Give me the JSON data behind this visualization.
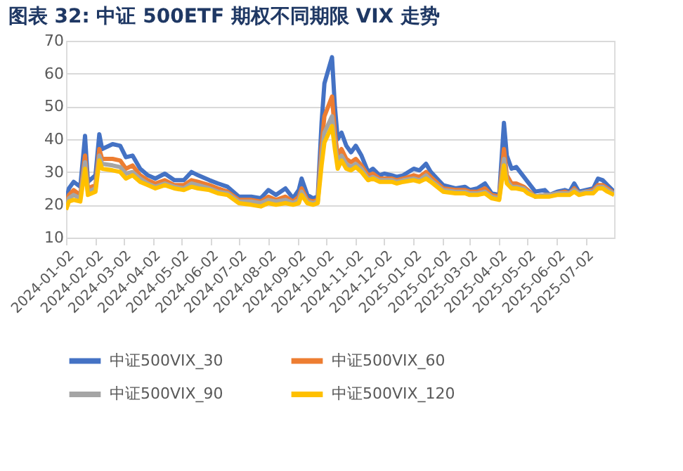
{
  "chart_data": {
    "type": "line",
    "title": "图表 32:  中证 500ETF 期权不同期限 VIX 走势",
    "x": [
      "2024-01-02",
      "2024-01-05",
      "2024-01-10",
      "2024-01-17",
      "2024-01-22",
      "2024-01-25",
      "2024-02-02",
      "2024-02-06",
      "2024-02-09",
      "2024-02-20",
      "2024-02-28",
      "2024-03-05",
      "2024-03-12",
      "2024-03-20",
      "2024-03-28",
      "2024-04-05",
      "2024-04-15",
      "2024-04-25",
      "2024-05-05",
      "2024-05-13",
      "2024-05-20",
      "2024-06-01",
      "2024-06-10",
      "2024-06-20",
      "2024-07-02",
      "2024-07-15",
      "2024-07-25",
      "2024-08-02",
      "2024-08-10",
      "2024-08-20",
      "2024-08-28",
      "2024-09-03",
      "2024-09-06",
      "2024-09-12",
      "2024-09-18",
      "2024-09-23",
      "2024-09-27",
      "2024-09-30",
      "2024-10-08",
      "2024-10-11",
      "2024-10-14",
      "2024-10-18",
      "2024-10-23",
      "2024-10-28",
      "2024-11-02",
      "2024-11-08",
      "2024-11-15",
      "2024-11-20",
      "2024-11-27",
      "2024-12-02",
      "2024-12-10",
      "2024-12-15",
      "2024-12-22",
      "2025-01-02",
      "2025-01-08",
      "2025-01-15",
      "2025-01-20",
      "2025-02-02",
      "2025-02-15",
      "2025-02-25",
      "2025-03-02",
      "2025-03-10",
      "2025-03-18",
      "2025-03-25",
      "2025-04-02",
      "2025-04-07",
      "2025-04-10",
      "2025-04-15",
      "2025-04-20",
      "2025-04-28",
      "2025-05-02",
      "2025-05-10",
      "2025-05-20",
      "2025-05-25",
      "2025-06-02",
      "2025-06-10",
      "2025-06-15",
      "2025-06-20",
      "2025-06-25",
      "2025-07-02",
      "2025-07-10",
      "2025-07-15",
      "2025-07-20",
      "2025-07-25",
      "2025-08-01"
    ],
    "series": [
      {
        "name": "中证500VIX_30",
        "color": "#4472c4",
        "values": [
          21,
          25,
          27,
          25.5,
          41,
          27,
          29,
          41.5,
          37,
          38.5,
          38,
          34.5,
          35,
          31,
          29,
          28,
          29.5,
          27.5,
          27.5,
          30,
          29,
          27.5,
          26.5,
          25.5,
          22.5,
          22.5,
          22,
          24.5,
          23,
          25,
          22,
          24.5,
          28,
          23,
          22,
          22.5,
          45,
          57,
          65,
          50,
          40,
          42,
          38,
          36,
          38,
          35,
          30,
          31,
          29,
          29.5,
          29,
          28.5,
          29,
          31,
          30.5,
          32.5,
          30,
          26,
          25,
          25.5,
          24.5,
          25,
          26.5,
          23.5,
          23,
          45,
          35,
          31,
          31.5,
          28.5,
          27,
          24,
          24.5,
          23,
          24,
          24.5,
          24,
          26.5,
          24,
          24.5,
          25,
          28,
          27.5,
          26,
          24
        ]
      },
      {
        "name": "中证500VIX_60",
        "color": "#ed7d31",
        "values": [
          20,
          23,
          24.5,
          23,
          35,
          25,
          26,
          37,
          34,
          34,
          33.5,
          31,
          32,
          29,
          27.5,
          26.5,
          27.5,
          26,
          26,
          27.5,
          27,
          26,
          25,
          24,
          21.5,
          21.5,
          21,
          22.5,
          21.5,
          22.5,
          21,
          22.5,
          25,
          21.5,
          21,
          21.5,
          38,
          47,
          53,
          42,
          35,
          37,
          34,
          33,
          34,
          32,
          29,
          29.5,
          28,
          28,
          28,
          27.5,
          28,
          29,
          28.5,
          30,
          28.5,
          25,
          24.5,
          24.5,
          24,
          24,
          25,
          23,
          22.5,
          37,
          29,
          26.5,
          26.5,
          25.5,
          24.5,
          22.5,
          23,
          23,
          23.5,
          24,
          23.5,
          25,
          23.5,
          24,
          24.5,
          26,
          26,
          25,
          23.5
        ]
      },
      {
        "name": "中证500VIX_90",
        "color": "#a5a5a5",
        "values": [
          19.5,
          22,
          23,
          22,
          33,
          24,
          25,
          35,
          32.5,
          32,
          31.5,
          29.5,
          30,
          28,
          26.5,
          25.5,
          26.5,
          25.5,
          25,
          26.5,
          26,
          25,
          24,
          23.5,
          21,
          21,
          20.5,
          21.5,
          21,
          21.5,
          20.5,
          21.5,
          24,
          21,
          20.5,
          21,
          35,
          42,
          47,
          39,
          33,
          35,
          32.5,
          31.5,
          32.5,
          31,
          28,
          28.5,
          27.5,
          27.5,
          27.5,
          27,
          27.5,
          28,
          27.5,
          29,
          27.5,
          24.5,
          24,
          24,
          23.5,
          23.5,
          24,
          22.5,
          22,
          34,
          27.5,
          25.5,
          25.5,
          25,
          24,
          22.5,
          23,
          23,
          23.5,
          23.5,
          23.5,
          24.5,
          23.5,
          24,
          24,
          25.5,
          25.5,
          24.5,
          23.5
        ]
      },
      {
        "name": "中证500VIX_120",
        "color": "#ffc000",
        "values": [
          18.5,
          21,
          21.5,
          21,
          31,
          23,
          24,
          33.5,
          31,
          30.5,
          30,
          28,
          29,
          27,
          26,
          25,
          26,
          25,
          24.5,
          25.5,
          25,
          24.5,
          23.5,
          23,
          20.5,
          20,
          19.5,
          20.5,
          20,
          20.5,
          20,
          20.5,
          23,
          20.5,
          20,
          20.5,
          32,
          39,
          44,
          37,
          31,
          33.5,
          31,
          30.5,
          31.5,
          30,
          27.5,
          28,
          27,
          27,
          27,
          26.5,
          27,
          27.5,
          27,
          28,
          27,
          24,
          23.5,
          23.5,
          23,
          23,
          23.5,
          22,
          21.5,
          32,
          26.5,
          25,
          25,
          24.5,
          23.5,
          22.5,
          22.5,
          22.5,
          23,
          23,
          23,
          24,
          23,
          23.5,
          23.5,
          25,
          25,
          24,
          23
        ]
      }
    ],
    "xlim": [
      "2024-01-02",
      "2025-08-01"
    ],
    "xticks": [
      "2024-01-02",
      "2024-02-02",
      "2024-03-02",
      "2024-04-02",
      "2024-05-02",
      "2024-06-02",
      "2024-07-02",
      "2024-08-02",
      "2024-09-02",
      "2024-10-02",
      "2024-11-02",
      "2024-12-02",
      "2025-01-02",
      "2025-02-02",
      "2025-03-02",
      "2025-04-02",
      "2025-05-02",
      "2025-06-02",
      "2025-07-02"
    ],
    "ylim": [
      10,
      70
    ],
    "yticks": [
      10,
      20,
      30,
      40,
      50,
      60,
      70
    ],
    "grid": "y",
    "legend": "bottom",
    "marker": "none",
    "line_style": "solid"
  }
}
